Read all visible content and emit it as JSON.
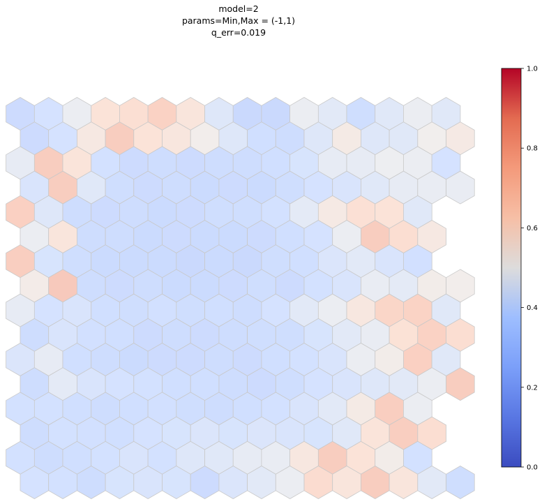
{
  "chart_data": {
    "type": "heatmap",
    "title_lines": [
      "model=2",
      "params=Min,Max = (-1,1)",
      "q_err=0.019"
    ],
    "grid": "hexagonal",
    "colormap": "coolwarm",
    "colorbar": {
      "range": [
        0,
        1
      ],
      "ticks": [
        "0.0",
        "0.2",
        "0.4",
        "0.6",
        "0.8",
        "1.0"
      ],
      "tick_values": [
        0.0,
        0.2,
        0.4,
        0.6,
        0.8,
        1.0
      ]
    },
    "rows": [
      [
        0.32,
        0.38,
        0.48,
        0.62,
        0.65,
        0.75,
        0.6,
        0.42,
        0.3,
        0.3,
        0.48,
        0.44,
        0.34,
        0.43,
        0.48,
        0.43
      ],
      [
        0.32,
        0.38,
        0.57,
        0.78,
        0.62,
        0.59,
        0.52,
        0.42,
        0.35,
        0.33,
        0.42,
        0.55,
        0.42,
        0.43,
        0.51,
        0.56
      ],
      [
        0.46,
        0.78,
        0.61,
        0.37,
        0.32,
        0.33,
        0.32,
        0.33,
        0.33,
        0.35,
        0.39,
        0.46,
        0.46,
        0.49,
        0.48,
        0.38
      ],
      [
        0.4,
        0.78,
        0.43,
        0.34,
        0.32,
        0.33,
        0.31,
        0.32,
        0.31,
        0.34,
        0.38,
        0.4,
        0.43,
        0.46,
        0.47,
        0.47
      ],
      [
        0.76,
        0.42,
        0.33,
        0.32,
        0.33,
        0.31,
        0.32,
        0.34,
        0.34,
        0.37,
        0.45,
        0.56,
        0.64,
        0.62,
        0.43,
        null
      ],
      [
        0.48,
        0.6,
        0.33,
        0.33,
        0.31,
        0.32,
        0.31,
        0.31,
        0.32,
        0.35,
        0.38,
        0.48,
        0.78,
        0.66,
        0.57,
        null
      ],
      [
        0.77,
        0.39,
        0.34,
        0.31,
        0.31,
        0.31,
        0.3,
        0.31,
        0.3,
        0.34,
        0.35,
        0.41,
        0.44,
        0.4,
        0.36,
        null
      ],
      [
        0.54,
        0.8,
        0.33,
        0.32,
        0.33,
        0.31,
        0.31,
        0.32,
        0.34,
        0.32,
        0.37,
        0.4,
        0.47,
        0.45,
        0.53,
        0.52
      ],
      [
        0.46,
        0.38,
        0.4,
        0.35,
        0.34,
        0.36,
        0.34,
        0.35,
        0.33,
        0.38,
        0.44,
        0.48,
        0.58,
        0.72,
        0.74,
        0.43
      ],
      [
        0.33,
        0.4,
        0.36,
        0.35,
        0.32,
        0.33,
        0.32,
        0.33,
        0.34,
        0.34,
        0.39,
        0.44,
        0.47,
        0.63,
        0.75,
        0.66
      ],
      [
        0.41,
        0.46,
        0.35,
        0.33,
        0.31,
        0.32,
        0.32,
        0.33,
        0.32,
        0.35,
        0.37,
        0.4,
        0.48,
        0.53,
        0.76,
        0.43
      ],
      [
        0.33,
        0.45,
        0.4,
        0.38,
        0.37,
        0.35,
        0.35,
        0.33,
        0.32,
        0.34,
        0.38,
        0.4,
        0.42,
        0.44,
        0.48,
        0.78
      ],
      [
        0.37,
        0.37,
        0.35,
        0.33,
        0.35,
        0.36,
        0.34,
        0.33,
        0.35,
        0.37,
        0.4,
        0.44,
        0.55,
        0.77,
        0.48,
        null
      ],
      [
        0.33,
        0.37,
        0.36,
        0.35,
        0.38,
        0.39,
        0.41,
        0.39,
        0.41,
        0.4,
        0.39,
        0.43,
        0.61,
        0.77,
        0.66,
        null
      ],
      [
        0.37,
        0.33,
        0.35,
        0.37,
        0.4,
        0.37,
        0.42,
        0.43,
        0.46,
        0.47,
        0.58,
        0.78,
        0.62,
        0.53,
        0.37,
        null
      ],
      [
        0.38,
        0.37,
        0.33,
        0.39,
        0.4,
        0.39,
        0.32,
        0.41,
        0.44,
        0.48,
        0.67,
        0.6,
        0.78,
        0.6,
        0.44,
        0.34
      ]
    ]
  }
}
